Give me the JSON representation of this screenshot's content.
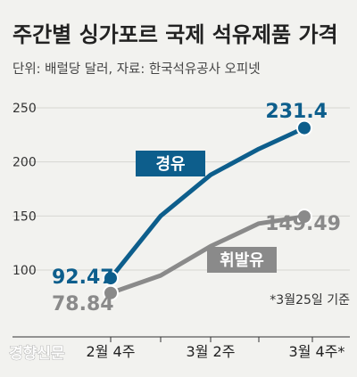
{
  "chart_data": {
    "type": "line",
    "title": "주간별 싱가포르 국제 석유제품 가격",
    "subtitle": "단위: 배럴당 달러, 자료: 한국석유공사 오피넷",
    "categories": [
      "2월 4주",
      "",
      "3월 2주",
      "",
      "3월 4주*"
    ],
    "yticks": [
      "250",
      "200",
      "150",
      "100"
    ],
    "ylim": [
      80,
      250
    ],
    "series": [
      {
        "name": "경유",
        "color": "#0d5e8c",
        "values": [
          92.47,
          150,
          188,
          212,
          231.4
        ],
        "labels": [
          "92.47",
          "",
          "",
          "",
          "231.4"
        ]
      },
      {
        "name": "휘발유",
        "color": "#8a8a8a",
        "values": [
          78.84,
          95,
          122,
          143,
          149.49
        ],
        "labels": [
          "78.84",
          "",
          "",
          "",
          "149.49"
        ]
      }
    ],
    "annotation": "*3월25일 기준",
    "source": "경향신문"
  }
}
